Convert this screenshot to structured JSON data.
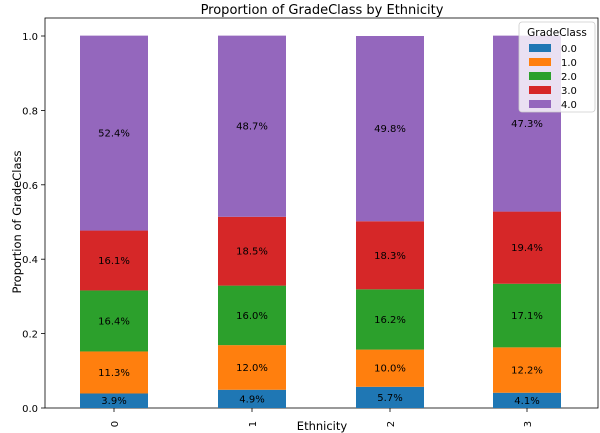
{
  "chart_data": {
    "type": "bar",
    "stacked": true,
    "normalized": true,
    "title": "Proportion of GradeClass by Ethnicity",
    "xlabel": "Ethnicity",
    "ylabel": "Proportion of GradeClass",
    "categories": [
      "0",
      "1",
      "2",
      "3"
    ],
    "ylim": [
      0,
      1.0
    ],
    "yticks": [
      "0.0",
      "0.2",
      "0.4",
      "0.6",
      "0.8",
      "1.0"
    ],
    "legend": {
      "title": "GradeClass",
      "placement": "top-right"
    },
    "grid": false,
    "series": [
      {
        "name": "0.0",
        "color": "#1f77b4",
        "values": [
          3.9,
          4.9,
          5.7,
          4.1
        ],
        "labels": [
          "3.9%",
          "4.9%",
          "5.7%",
          "4.1%"
        ]
      },
      {
        "name": "1.0",
        "color": "#ff7f0e",
        "values": [
          11.3,
          12.0,
          10.0,
          12.2
        ],
        "labels": [
          "11.3%",
          "12.0%",
          "10.0%",
          "12.2%"
        ]
      },
      {
        "name": "2.0",
        "color": "#2ca02c",
        "values": [
          16.4,
          16.0,
          16.2,
          17.1
        ],
        "labels": [
          "16.4%",
          "16.0%",
          "16.2%",
          "17.1%"
        ]
      },
      {
        "name": "3.0",
        "color": "#d62728",
        "values": [
          16.1,
          18.5,
          18.3,
          19.4
        ],
        "labels": [
          "16.1%",
          "18.5%",
          "18.3%",
          "19.4%"
        ]
      },
      {
        "name": "4.0",
        "color": "#9467bd",
        "values": [
          52.4,
          48.7,
          49.8,
          47.3
        ],
        "labels": [
          "52.4%",
          "48.7%",
          "49.8%",
          "47.3%"
        ]
      }
    ]
  }
}
